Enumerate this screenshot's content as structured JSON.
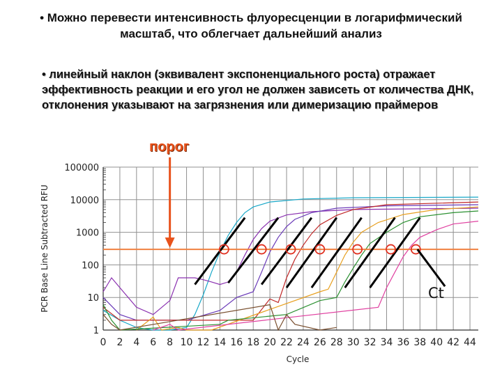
{
  "slide": {
    "bullet1": "• Можно перевести интенсивность флуоресценции в логарифмический масштаб, что облегчает дальнейший анализ",
    "bullet2": "• линейный наклон (эквивалент экспоненциального роста) отражает эффективность реакции и его угол не должен зависеть от количества ДНК, отклонения указывают на загрязнения или димеризацию праймеров",
    "threshold_label": "порог",
    "ct_label": "Ct"
  },
  "colors": {
    "threshold": "#f08040",
    "arrow": "#e8521b",
    "slope_lines": "#000000",
    "circles": "#e03020"
  },
  "chart_data": {
    "type": "line",
    "title": "",
    "xlabel": "Cycle",
    "ylabel": "PCR Base Line Subtracted RFU",
    "xlim": [
      0,
      45
    ],
    "ylim": [
      1,
      100000
    ],
    "yscale": "log",
    "grid": true,
    "x_ticks": [
      0,
      2,
      4,
      6,
      8,
      10,
      12,
      14,
      16,
      18,
      20,
      22,
      24,
      26,
      28,
      30,
      32,
      34,
      36,
      38,
      40,
      42,
      44
    ],
    "y_ticks": [
      1,
      10,
      100,
      1000,
      10000,
      100000
    ],
    "y_tick_labels": [
      "1",
      "10",
      "100",
      "1000",
      "10000",
      "100000"
    ],
    "threshold": 300,
    "series": [
      {
        "color": "#18a8c8",
        "points": [
          [
            0,
            4
          ],
          [
            2,
            2
          ],
          [
            4,
            1.2
          ],
          [
            6,
            1
          ],
          [
            8,
            1
          ],
          [
            10,
            1.2
          ],
          [
            11,
            3
          ],
          [
            12,
            12
          ],
          [
            13,
            60
          ],
          [
            14,
            250
          ],
          [
            15,
            800
          ],
          [
            16,
            2000
          ],
          [
            17,
            4000
          ],
          [
            18,
            6000
          ],
          [
            20,
            8500
          ],
          [
            24,
            10500
          ],
          [
            30,
            11500
          ],
          [
            45,
            12000
          ]
        ]
      },
      {
        "color": "#8a30b0",
        "points": [
          [
            0,
            15
          ],
          [
            1,
            40
          ],
          [
            2,
            20
          ],
          [
            4,
            5
          ],
          [
            6,
            3
          ],
          [
            8,
            8
          ],
          [
            9,
            40
          ],
          [
            11,
            40
          ],
          [
            12,
            35
          ],
          [
            13,
            30
          ],
          [
            14,
            25
          ],
          [
            15,
            30
          ],
          [
            16,
            60
          ],
          [
            17,
            200
          ],
          [
            18,
            600
          ],
          [
            19,
            1300
          ],
          [
            20,
            2200
          ],
          [
            22,
            3400
          ],
          [
            25,
            4300
          ],
          [
            30,
            5000
          ],
          [
            45,
            5500
          ]
        ]
      },
      {
        "color": "#6a3ab8",
        "points": [
          [
            0,
            10
          ],
          [
            2,
            3
          ],
          [
            4,
            2
          ],
          [
            10,
            2
          ],
          [
            14,
            4
          ],
          [
            16,
            10
          ],
          [
            18,
            15
          ],
          [
            19,
            60
          ],
          [
            20,
            250
          ],
          [
            21,
            700
          ],
          [
            22,
            1500
          ],
          [
            23,
            2500
          ],
          [
            25,
            4000
          ],
          [
            28,
            5500
          ],
          [
            34,
            6500
          ],
          [
            45,
            7000
          ]
        ]
      },
      {
        "color": "#c02828",
        "points": [
          [
            0,
            5
          ],
          [
            2,
            2
          ],
          [
            18,
            2
          ],
          [
            20,
            9
          ],
          [
            21,
            7
          ],
          [
            22,
            40
          ],
          [
            23,
            150
          ],
          [
            24,
            400
          ],
          [
            25,
            900
          ],
          [
            26,
            1700
          ],
          [
            28,
            3300
          ],
          [
            30,
            5000
          ],
          [
            34,
            7000
          ],
          [
            45,
            8500
          ]
        ]
      },
      {
        "color": "#e8a020",
        "points": [
          [
            4,
            1
          ],
          [
            6,
            2.5
          ],
          [
            7,
            1
          ],
          [
            9,
            1.2
          ],
          [
            10,
            1
          ],
          [
            13,
            1
          ],
          [
            26,
            15
          ],
          [
            27,
            18
          ],
          [
            28,
            60
          ],
          [
            29,
            200
          ],
          [
            30,
            500
          ],
          [
            31,
            1000
          ],
          [
            33,
            2000
          ],
          [
            36,
            3500
          ],
          [
            40,
            5000
          ],
          [
            45,
            6000
          ]
        ]
      },
      {
        "color": "#2a9030",
        "points": [
          [
            0,
            6
          ],
          [
            1,
            2
          ],
          [
            2,
            1
          ],
          [
            14,
            1.5
          ],
          [
            15,
            2
          ],
          [
            22,
            3
          ],
          [
            26,
            8
          ],
          [
            28,
            10
          ],
          [
            29,
            30
          ],
          [
            30,
            80
          ],
          [
            31,
            200
          ],
          [
            32,
            450
          ],
          [
            34,
            1000
          ],
          [
            36,
            2000
          ],
          [
            38,
            3000
          ],
          [
            42,
            4000
          ],
          [
            45,
            4500
          ]
        ]
      },
      {
        "color": "#e040a0",
        "points": [
          [
            6,
            1
          ],
          [
            8,
            1.5
          ],
          [
            9,
            1
          ],
          [
            33,
            5
          ],
          [
            34,
            20
          ],
          [
            35,
            60
          ],
          [
            36,
            180
          ],
          [
            37,
            400
          ],
          [
            38,
            700
          ],
          [
            40,
            1200
          ],
          [
            42,
            1800
          ],
          [
            45,
            2200
          ]
        ]
      },
      {
        "color": "#7a5030",
        "points": [
          [
            0,
            3
          ],
          [
            1,
            1.5
          ],
          [
            2,
            1
          ],
          [
            20,
            6
          ],
          [
            21,
            1
          ],
          [
            22,
            3
          ],
          [
            23,
            1.5
          ],
          [
            26,
            1
          ],
          [
            28,
            1.2
          ]
        ]
      }
    ],
    "slope_segments": [
      [
        [
          11,
          25
        ],
        [
          17,
          2800
        ]
      ],
      [
        [
          15,
          28
        ],
        [
          21,
          2800
        ]
      ],
      [
        [
          19,
          25
        ],
        [
          25,
          2800
        ]
      ],
      [
        [
          22,
          20
        ],
        [
          28,
          2800
        ]
      ],
      [
        [
          25,
          20
        ],
        [
          31,
          2800
        ]
      ],
      [
        [
          29,
          20
        ],
        [
          35,
          2800
        ]
      ],
      [
        [
          32,
          20
        ],
        [
          38,
          2800
        ]
      ]
    ],
    "ct_circles": [
      14.5,
      19,
      22.5,
      26,
      30.5,
      34.5,
      37.5
    ],
    "ct_pointer": [
      [
        37.7,
        300
      ],
      [
        41,
        22
      ]
    ],
    "threshold_arrow_x": 8
  }
}
